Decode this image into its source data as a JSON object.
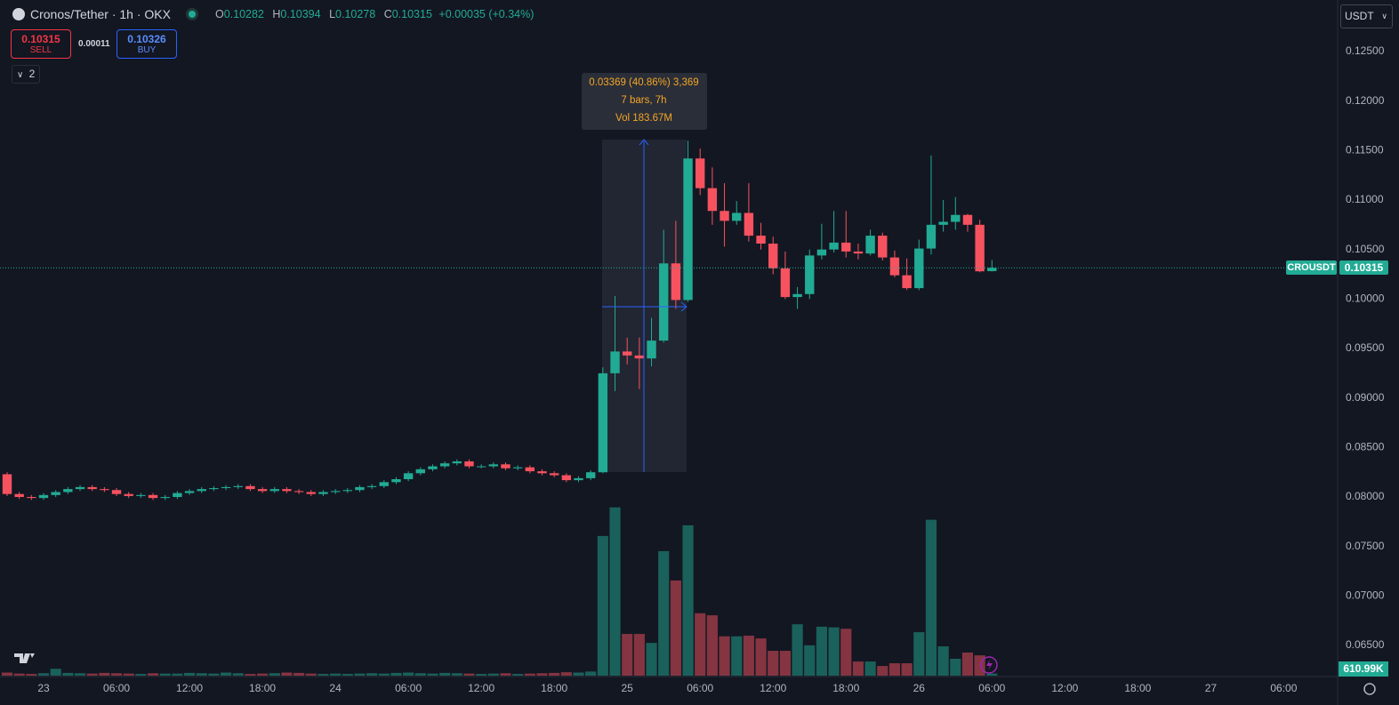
{
  "chart_data": {
    "type": "candlestick",
    "title": "Cronos/Tether · 1h · OKX",
    "ohlc_labels": [
      "O",
      "H",
      "L",
      "C"
    ],
    "change": "+0.00035 (+0.34%)",
    "sell_label": "SELL",
    "buy_label": "BUY",
    "buy_price": "0.10326",
    "spread": "0.00011",
    "indicator_count": "2",
    "currency": "USDT",
    "symbol": "CROUSDT",
    "volume_last_label": "610.99K",
    "measure": {
      "change": "0.03369 (40.86%) 3,369",
      "bars": "7 bars, 7h",
      "volume": "Vol 183.67M"
    },
    "up_color": "#22ab94",
    "down_color": "#f7525f",
    "x": [
      0,
      1,
      2,
      3,
      4,
      5,
      6,
      7,
      8,
      9,
      10,
      11,
      12,
      13,
      14,
      15,
      16,
      17,
      18,
      19,
      20,
      21,
      22,
      23,
      24,
      25,
      26,
      27,
      28,
      29,
      30,
      31,
      32,
      33,
      34,
      35,
      36,
      37,
      38,
      39,
      40,
      41,
      42,
      43,
      44,
      45,
      46,
      47,
      48,
      49,
      50,
      51,
      52,
      53,
      54,
      55,
      56,
      57,
      58,
      59,
      60,
      61,
      62,
      63,
      64,
      65,
      66,
      67,
      68,
      69,
      70,
      71,
      72,
      73,
      74,
      75,
      76,
      77,
      78,
      79,
      80,
      81
    ],
    "open": [
      0.0823,
      0.0803,
      0.08,
      0.0799,
      0.0802,
      0.0805,
      0.0808,
      0.081,
      0.0808,
      0.0807,
      0.0803,
      0.0801,
      0.0802,
      0.0799,
      0.08,
      0.0804,
      0.0806,
      0.0808,
      0.0809,
      0.081,
      0.0811,
      0.0808,
      0.0806,
      0.0808,
      0.0806,
      0.0805,
      0.0803,
      0.0805,
      0.0806,
      0.0807,
      0.081,
      0.0811,
      0.0815,
      0.0818,
      0.0824,
      0.0828,
      0.0831,
      0.0834,
      0.0836,
      0.0831,
      0.0831,
      0.0833,
      0.0829,
      0.083,
      0.0826,
      0.0824,
      0.0822,
      0.0817,
      0.0819,
      0.0825,
      0.0925,
      0.0947,
      0.0943,
      0.094,
      0.0958,
      0.1036,
      0.0999,
      0.1142,
      0.1112,
      0.1089,
      0.1079,
      0.1087,
      0.1064,
      0.1056,
      0.1031,
      0.1002,
      0.1005,
      0.1044,
      0.105,
      0.1057,
      0.1048,
      0.1046,
      0.1064,
      0.1042,
      0.1024,
      0.1011,
      0.1051,
      0.1075,
      0.1078,
      0.1085,
      0.1075,
      0.10282
    ],
    "high": [
      0.0825,
      0.0805,
      0.0802,
      0.0804,
      0.0807,
      0.081,
      0.0812,
      0.0812,
      0.081,
      0.0809,
      0.0805,
      0.0804,
      0.0804,
      0.0802,
      0.0806,
      0.0808,
      0.081,
      0.0811,
      0.0812,
      0.0813,
      0.0813,
      0.081,
      0.081,
      0.081,
      0.0808,
      0.0807,
      0.0807,
      0.0808,
      0.0809,
      0.0812,
      0.0813,
      0.0817,
      0.082,
      0.0826,
      0.083,
      0.0833,
      0.0836,
      0.0838,
      0.0838,
      0.0833,
      0.0835,
      0.0835,
      0.0832,
      0.0832,
      0.0828,
      0.0826,
      0.0824,
      0.0821,
      0.0827,
      0.0931,
      0.1003,
      0.0961,
      0.0961,
      0.0981,
      0.107,
      0.1079,
      0.116,
      0.1152,
      0.1133,
      0.1117,
      0.1099,
      0.1117,
      0.1077,
      0.1063,
      0.1048,
      0.1012,
      0.105,
      0.1076,
      0.1089,
      0.1089,
      0.1056,
      0.107,
      0.1067,
      0.1049,
      0.1041,
      0.106,
      0.1145,
      0.11,
      0.1103,
      0.1086,
      0.108,
      0.10394
    ],
    "low": [
      0.0801,
      0.0798,
      0.0797,
      0.0797,
      0.08,
      0.0803,
      0.0806,
      0.0806,
      0.0805,
      0.0801,
      0.0799,
      0.0799,
      0.0797,
      0.0797,
      0.0798,
      0.0802,
      0.0804,
      0.0806,
      0.0807,
      0.0808,
      0.0806,
      0.0804,
      0.0804,
      0.0804,
      0.0803,
      0.0801,
      0.0801,
      0.0803,
      0.0804,
      0.0805,
      0.0808,
      0.0809,
      0.0813,
      0.0816,
      0.0822,
      0.0826,
      0.0829,
      0.0832,
      0.0829,
      0.0829,
      0.0829,
      0.0827,
      0.0827,
      0.0824,
      0.0822,
      0.082,
      0.0815,
      0.0815,
      0.0817,
      0.0824,
      0.0907,
      0.0934,
      0.0909,
      0.0932,
      0.0956,
      0.099,
      0.0997,
      0.1105,
      0.1075,
      0.1053,
      0.1075,
      0.1058,
      0.105,
      0.1025,
      0.1,
      0.099,
      0.1,
      0.104,
      0.1047,
      0.1042,
      0.104,
      0.1044,
      0.1039,
      0.1022,
      0.1009,
      0.1009,
      0.1045,
      0.1068,
      0.107,
      0.1068,
      0.1027,
      0.10278
    ],
    "close": [
      0.0803,
      0.08,
      0.0799,
      0.0802,
      0.0805,
      0.0808,
      0.081,
      0.0808,
      0.0807,
      0.0803,
      0.0801,
      0.0802,
      0.0799,
      0.08,
      0.0804,
      0.0806,
      0.0808,
      0.0809,
      0.081,
      0.0811,
      0.0808,
      0.0806,
      0.0808,
      0.0806,
      0.0805,
      0.0803,
      0.0805,
      0.0806,
      0.0807,
      0.081,
      0.0811,
      0.0815,
      0.0818,
      0.0824,
      0.0828,
      0.0831,
      0.0834,
      0.0836,
      0.0831,
      0.0831,
      0.0833,
      0.0829,
      0.083,
      0.0826,
      0.0824,
      0.0822,
      0.0817,
      0.0819,
      0.0825,
      0.0925,
      0.0947,
      0.0943,
      0.094,
      0.0958,
      0.1036,
      0.0999,
      0.1142,
      0.1112,
      0.1089,
      0.1079,
      0.1087,
      0.1064,
      0.1056,
      0.1031,
      0.1002,
      0.1005,
      0.1044,
      0.105,
      0.1057,
      0.1048,
      0.1046,
      0.1064,
      0.1042,
      0.1024,
      0.1011,
      0.1051,
      0.1075,
      0.1078,
      0.1085,
      0.1075,
      0.1028,
      0.10315
    ],
    "volume": [
      0.9,
      0.6,
      0.5,
      0.7,
      2.0,
      0.8,
      0.7,
      0.6,
      0.8,
      0.7,
      0.6,
      0.5,
      0.7,
      0.6,
      0.6,
      0.8,
      0.7,
      0.6,
      0.9,
      0.7,
      0.5,
      0.6,
      0.7,
      0.9,
      0.8,
      0.6,
      0.5,
      0.6,
      0.5,
      0.6,
      0.7,
      0.6,
      0.8,
      0.9,
      0.7,
      0.6,
      0.8,
      0.7,
      0.6,
      0.5,
      0.6,
      0.7,
      0.5,
      0.6,
      0.7,
      0.8,
      1.0,
      0.9,
      1.2,
      40.5,
      48.8,
      12.1,
      12.1,
      9.5,
      36.1,
      27.6,
      43.6,
      18.1,
      17.5,
      11.4,
      11.4,
      11.6,
      10.8,
      7.2,
      7.2,
      14.9,
      8.8,
      14.2,
      14.0,
      13.6,
      4.1,
      4.1,
      2.8,
      3.6,
      3.6,
      12.6,
      45.2,
      8.5,
      4.9,
      6.7,
      5.9,
      0.61099
    ],
    "volume_lim": [
      0,
      50
    ],
    "xlim": [
      -0.585,
      109.36
    ],
    "xticks": [
      {
        "value": 3,
        "label": "23"
      },
      {
        "value": 9,
        "label": "06:00"
      },
      {
        "value": 15,
        "label": "12:00"
      },
      {
        "value": 21,
        "label": "18:00"
      },
      {
        "value": 27,
        "label": "24"
      },
      {
        "value": 33,
        "label": "06:00"
      },
      {
        "value": 39,
        "label": "12:00"
      },
      {
        "value": 45,
        "label": "18:00"
      },
      {
        "value": 51,
        "label": "25"
      },
      {
        "value": 57,
        "label": "06:00"
      },
      {
        "value": 63,
        "label": "12:00"
      },
      {
        "value": 69,
        "label": "18:00"
      },
      {
        "value": 75,
        "label": "26"
      },
      {
        "value": 81,
        "label": "06:00"
      },
      {
        "value": 87,
        "label": "12:00"
      },
      {
        "value": 93,
        "label": "18:00"
      },
      {
        "value": 99,
        "label": "27"
      },
      {
        "value": 105,
        "label": "06:00"
      }
    ],
    "ylim": [
      0.06195,
      0.13021
    ],
    "yticks": [
      {
        "value": 0.065,
        "label": "0.06500"
      },
      {
        "value": 0.07,
        "label": "0.07000"
      },
      {
        "value": 0.075,
        "label": "0.07500"
      },
      {
        "value": 0.08,
        "label": "0.08000"
      },
      {
        "value": 0.085,
        "label": "0.08500"
      },
      {
        "value": 0.09,
        "label": "0.09000"
      },
      {
        "value": 0.095,
        "label": "0.09500"
      },
      {
        "value": 0.1,
        "label": "0.10000"
      },
      {
        "value": 0.105,
        "label": "0.10500"
      },
      {
        "value": 0.11,
        "label": "0.11000"
      },
      {
        "value": 0.115,
        "label": "0.11500"
      },
      {
        "value": 0.12,
        "label": "0.12000"
      },
      {
        "value": 0.125,
        "label": "0.12500"
      }
    ],
    "grid": false
  }
}
